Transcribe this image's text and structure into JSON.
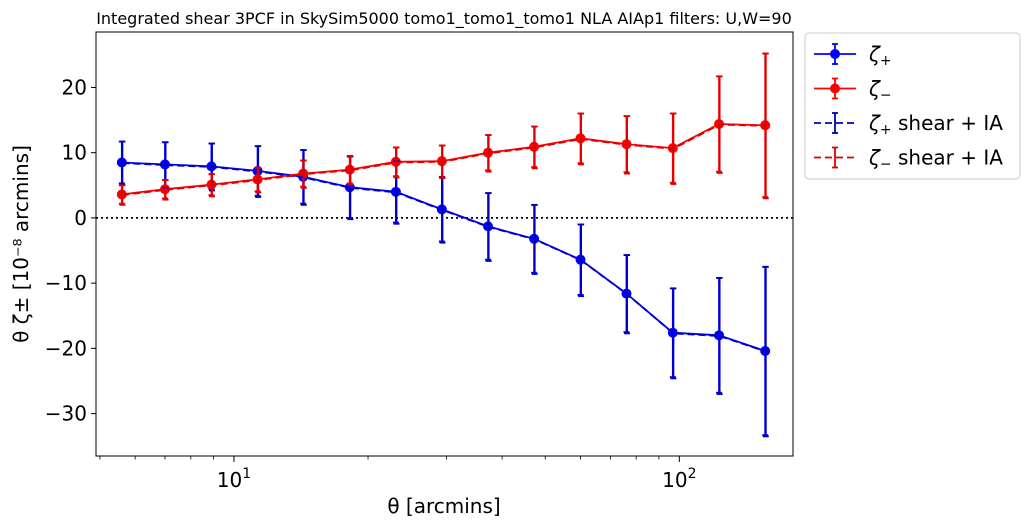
{
  "chart_data": {
    "type": "line",
    "title": "Integrated shear 3PCF in SkySim5000 tomo1_tomo1_tomo1 NLA AIAp1 filters: U,W=90",
    "xlabel": "θ [arcmins]",
    "ylabel": "θ ζ± [10⁻⁸ arcmins]",
    "xscale": "log",
    "xlim": [
      4.9,
      180
    ],
    "ylim": [
      -36.5,
      28.5
    ],
    "yticks": [
      -30,
      -20,
      -10,
      0,
      10,
      20
    ],
    "ytick_labels": [
      "−30",
      "−20",
      "−10",
      "0",
      "10",
      "20"
    ],
    "xticks": [
      10,
      100
    ],
    "xtick_labels": [
      "10¹",
      "10²"
    ],
    "zero_line": true,
    "grid": false,
    "legend_placement": "outside-top-right",
    "x": [
      5.6,
      7.0,
      8.9,
      11.3,
      14.3,
      18.2,
      23.1,
      29.3,
      37.2,
      47.2,
      60.0,
      76.1,
      96.7,
      122.8,
      155.9
    ],
    "series": [
      {
        "name": "ζ+",
        "legend_sub": "+",
        "legend_suffix": "",
        "style": "solid-marker",
        "color": "#0000ff",
        "values": [
          8.5,
          8.2,
          7.9,
          7.2,
          6.3,
          4.7,
          4.0,
          1.3,
          -1.3,
          -3.2,
          -6.4,
          -11.6,
          -17.6,
          -18.0,
          -20.4
        ],
        "errors": [
          3.2,
          3.4,
          3.5,
          3.8,
          4.1,
          4.7,
          4.7,
          4.9,
          5.1,
          5.2,
          5.4,
          5.9,
          6.8,
          8.8,
          12.9
        ]
      },
      {
        "name": "ζ−",
        "legend_sub": "−",
        "legend_suffix": "",
        "style": "solid-marker",
        "color": "#ff0000",
        "values": [
          3.6,
          4.4,
          5.1,
          5.9,
          6.8,
          7.4,
          8.6,
          8.7,
          10.0,
          10.9,
          12.2,
          11.3,
          10.7,
          14.4,
          14.2
        ],
        "errors": [
          1.4,
          1.4,
          1.6,
          1.8,
          2.0,
          2.1,
          2.2,
          2.4,
          2.7,
          3.1,
          3.8,
          4.3,
          5.3,
          7.3,
          11.0
        ]
      },
      {
        "name": "ζ+ shear + IA",
        "legend_sub": "+",
        "legend_suffix": " shear + IA",
        "style": "dashed",
        "color": "#0000bb",
        "values": [
          8.4,
          8.1,
          7.8,
          7.1,
          6.2,
          4.6,
          3.9,
          1.2,
          -1.4,
          -3.3,
          -6.5,
          -11.7,
          -17.7,
          -18.1,
          -20.5
        ],
        "errors": [
          3.3,
          3.5,
          3.6,
          3.9,
          4.2,
          4.8,
          4.8,
          5.0,
          5.2,
          5.3,
          5.5,
          6.0,
          6.9,
          8.9,
          13.0
        ]
      },
      {
        "name": "ζ− shear + IA",
        "legend_sub": "−",
        "legend_suffix": " shear + IA",
        "style": "dashed",
        "color": "#dd0000",
        "values": [
          3.5,
          4.3,
          5.0,
          5.8,
          6.7,
          7.3,
          8.5,
          8.6,
          9.9,
          10.8,
          12.1,
          11.2,
          10.6,
          14.3,
          14.1
        ],
        "errors": [
          1.5,
          1.5,
          1.7,
          1.9,
          2.1,
          2.2,
          2.3,
          2.5,
          2.8,
          3.2,
          3.9,
          4.4,
          5.4,
          7.4,
          11.1
        ]
      }
    ]
  }
}
